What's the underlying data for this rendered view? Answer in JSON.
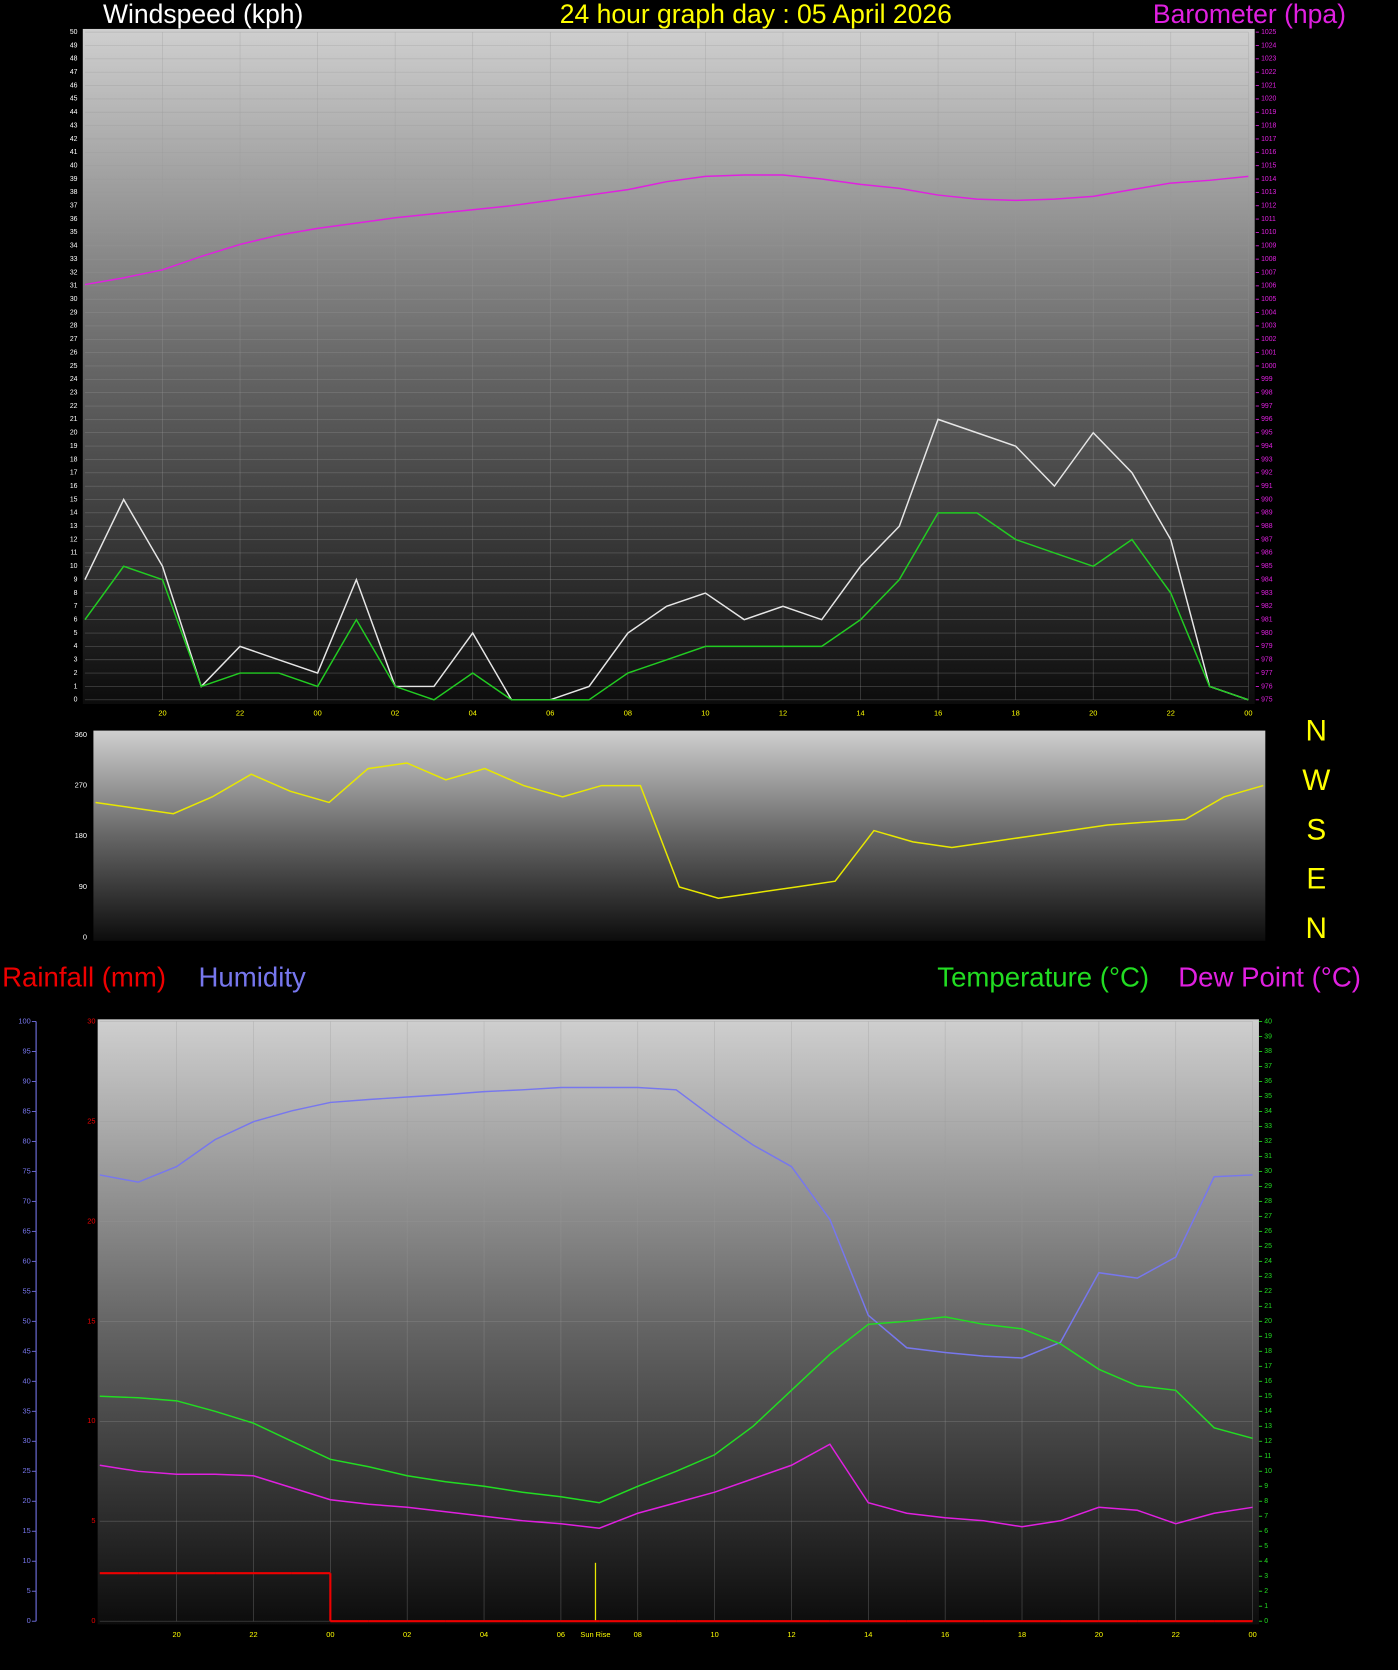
{
  "chart_data": [
    {
      "type": "line",
      "title": "24 hour graph day : 05 April 2026",
      "y_label": "Windspeed (kph)",
      "y2_label": "Barometer (hpa)",
      "x": [
        18,
        19,
        20,
        21,
        22,
        23,
        24,
        25,
        26,
        27,
        28,
        29,
        30,
        31,
        32,
        33,
        34,
        35,
        36,
        37,
        38,
        39,
        40,
        41,
        42,
        43,
        44,
        45,
        46,
        47,
        48
      ],
      "xlim": [
        18,
        48
      ],
      "xticks": [
        20,
        22,
        {
          "value": 24,
          "label": "00"
        },
        {
          "value": 26,
          "label": "02"
        },
        {
          "value": 28,
          "label": "04"
        },
        {
          "value": 30,
          "label": "06"
        },
        {
          "value": 32,
          "label": "08"
        },
        {
          "value": 34,
          "label": "10"
        },
        {
          "value": 36,
          "label": "12"
        },
        {
          "value": 38,
          "label": "14"
        },
        {
          "value": 40,
          "label": "16"
        },
        {
          "value": 42,
          "label": "18"
        },
        {
          "value": 44,
          "label": "20"
        },
        {
          "value": 46,
          "label": "22"
        },
        {
          "value": 48,
          "label": "00"
        }
      ],
      "ylim": [
        0,
        50
      ],
      "yticks": [
        0,
        1,
        2,
        3,
        4,
        5,
        6,
        7,
        8,
        9,
        10,
        11,
        12,
        13,
        14,
        15,
        16,
        17,
        18,
        19,
        20,
        21,
        22,
        23,
        24,
        25,
        26,
        27,
        28,
        29,
        30,
        31,
        32,
        33,
        34,
        35,
        36,
        37,
        38,
        39,
        40,
        41,
        42,
        43,
        44,
        45,
        46,
        47,
        48,
        49,
        50
      ],
      "y2lim": [
        975,
        1025
      ],
      "y2ticks": [
        975,
        976,
        977,
        978,
        979,
        980,
        981,
        982,
        983,
        984,
        985,
        986,
        987,
        988,
        989,
        990,
        991,
        992,
        993,
        994,
        995,
        996,
        997,
        998,
        999,
        1000,
        1001,
        1002,
        1003,
        1004,
        1005,
        1006,
        1007,
        1008,
        1009,
        1010,
        1011,
        1012,
        1013,
        1014,
        1015,
        1016,
        1017,
        1018,
        1019,
        1020,
        1021,
        1022,
        1023,
        1024,
        1025
      ],
      "grid": true,
      "series": [
        {
          "color": "#e6e6e6",
          "values": [
            9,
            15,
            10,
            1,
            4,
            3,
            2,
            9,
            1,
            1,
            5,
            0,
            0,
            1,
            5,
            7,
            8,
            6,
            7,
            6,
            10,
            13,
            21,
            20,
            19,
            16,
            20,
            17,
            12,
            1,
            0
          ]
        },
        {
          "color": "#22cc22",
          "values": [
            6,
            10,
            9,
            1,
            2,
            2,
            1,
            6,
            1,
            0,
            2,
            0,
            0,
            0,
            2,
            3,
            4,
            4,
            4,
            4,
            6,
            9,
            14,
            14,
            12,
            11,
            10,
            12,
            8,
            1,
            0
          ]
        },
        {
          "color": "#e020e0",
          "axis": "y2",
          "values": [
            1006.1,
            1006.6,
            1007.2,
            1008.2,
            1009.1,
            1009.8,
            1010.3,
            1010.7,
            1011.1,
            1011.4,
            1011.7,
            1012.0,
            1012.4,
            1012.8,
            1013.2,
            1013.8,
            1014.2,
            1014.3,
            1014.3,
            1014.0,
            1013.6,
            1013.3,
            1012.8,
            1012.5,
            1012.4,
            1012.5,
            1012.7,
            1013.2,
            1013.7,
            1013.9,
            1014.2
          ]
        }
      ]
    },
    {
      "type": "line",
      "x": [
        18,
        19,
        20,
        21,
        22,
        23,
        24,
        25,
        26,
        27,
        28,
        29,
        30,
        31,
        32,
        33,
        34,
        35,
        36,
        37,
        38,
        39,
        40,
        41,
        42,
        43,
        44,
        45,
        46,
        47,
        48
      ],
      "xlim": [
        18,
        48
      ],
      "ylim": [
        0,
        360
      ],
      "yticks": [
        0,
        90,
        180,
        270,
        360
      ],
      "compass": [
        "N",
        "W",
        "S",
        "E",
        "N"
      ],
      "series": [
        {
          "color": "#e8e800",
          "values": [
            240,
            230,
            220,
            250,
            290,
            260,
            240,
            300,
            310,
            280,
            300,
            270,
            250,
            270,
            270,
            90,
            70,
            80,
            90,
            100,
            190,
            170,
            160,
            170,
            180,
            190,
            200,
            205,
            210,
            250,
            270
          ]
        }
      ]
    },
    {
      "type": "line",
      "x": [
        18,
        19,
        20,
        21,
        22,
        23,
        24,
        25,
        26,
        27,
        28,
        29,
        30,
        31,
        32,
        33,
        34,
        35,
        36,
        37,
        38,
        39,
        40,
        41,
        42,
        43,
        44,
        45,
        46,
        47,
        48
      ],
      "xlim": [
        18,
        48
      ],
      "xticks": [
        20,
        22,
        {
          "value": 24,
          "label": "00"
        },
        {
          "value": 26,
          "label": "02"
        },
        {
          "value": 28,
          "label": "04"
        },
        {
          "value": 30,
          "label": "06"
        },
        {
          "value": 32,
          "label": "08"
        },
        {
          "value": 34,
          "label": "10"
        },
        {
          "value": 36,
          "label": "12"
        },
        {
          "value": 38,
          "label": "14"
        },
        {
          "value": 40,
          "label": "16"
        },
        {
          "value": 42,
          "label": "18"
        },
        {
          "value": 44,
          "label": "20"
        },
        {
          "value": 46,
          "label": "22"
        },
        {
          "value": 48,
          "label": "00"
        }
      ],
      "ylim": [
        0,
        30
      ],
      "yticks": [
        0,
        5,
        10,
        15,
        20,
        25,
        30
      ],
      "y2lim": [
        0,
        40
      ],
      "y2ticks": [
        0,
        1,
        2,
        3,
        4,
        5,
        6,
        7,
        8,
        9,
        10,
        11,
        12,
        13,
        14,
        15,
        16,
        17,
        18,
        19,
        20,
        21,
        22,
        23,
        24,
        25,
        26,
        27,
        28,
        29,
        30,
        31,
        32,
        33,
        34,
        35,
        36,
        37,
        38,
        39,
        40
      ],
      "y3lim": [
        0,
        100
      ],
      "y3ticks": [
        0,
        5,
        10,
        15,
        20,
        25,
        30,
        35,
        40,
        45,
        50,
        55,
        60,
        65,
        70,
        75,
        80,
        85,
        90,
        95,
        100
      ],
      "grid": true,
      "annotations": [
        {
          "x": 30.9,
          "label": "Sun Rise"
        }
      ],
      "series": [
        {
          "name": "Rainfall (mm)",
          "color": "#ee0000",
          "step": true,
          "values": [
            2.4,
            2.4,
            2.4,
            2.4,
            2.4,
            2.4,
            0,
            0,
            0,
            0,
            0,
            0,
            0,
            0,
            0,
            0,
            0,
            0,
            0,
            0,
            0,
            0,
            0,
            0,
            0,
            0,
            0,
            0,
            0,
            0,
            0
          ]
        },
        {
          "name": "Humidity",
          "color": "#7777ee",
          "axis": "y3",
          "values": [
            74.4,
            73.2,
            75.8,
            80.3,
            83.3,
            85.1,
            86.5,
            87.0,
            87.4,
            87.8,
            88.3,
            88.6,
            89.0,
            89.0,
            89.0,
            88.6,
            83.8,
            79.4,
            75.8,
            67.0,
            51.0,
            45.6,
            44.8,
            44.2,
            43.9,
            46.5,
            58.1,
            57.2,
            60.7,
            74.1,
            74.4
          ]
        },
        {
          "name": "Temperature (°C)",
          "color": "#22dd22",
          "axis": "y2",
          "values": [
            15.0,
            14.9,
            14.7,
            14.0,
            13.2,
            12.0,
            10.8,
            10.3,
            9.7,
            9.3,
            9.0,
            8.6,
            8.3,
            7.9,
            9.0,
            10.0,
            11.1,
            13.0,
            15.4,
            17.8,
            19.8,
            20.0,
            20.3,
            19.8,
            19.5,
            18.5,
            16.8,
            15.7,
            15.4,
            12.9,
            12.2
          ]
        },
        {
          "name": "Dew Point (°C)",
          "color": "#e020e0",
          "axis": "y2",
          "values": [
            10.4,
            10.0,
            9.8,
            9.8,
            9.7,
            8.9,
            8.1,
            7.8,
            7.6,
            7.3,
            7.0,
            6.7,
            6.5,
            6.2,
            7.2,
            7.9,
            8.6,
            9.5,
            10.4,
            11.8,
            7.9,
            7.2,
            6.9,
            6.7,
            6.3,
            6.7,
            7.6,
            7.4,
            6.5,
            7.2,
            7.6
          ]
        }
      ]
    }
  ]
}
